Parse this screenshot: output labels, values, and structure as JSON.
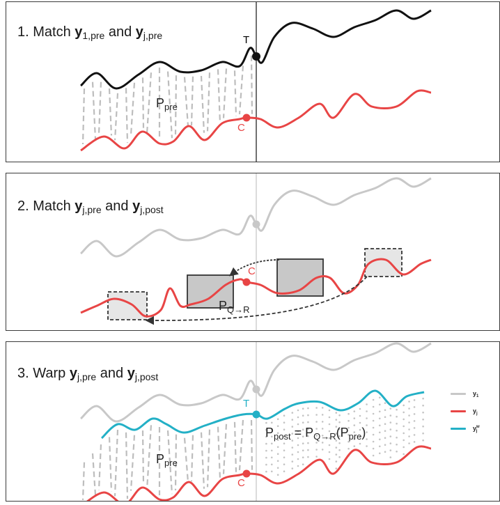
{
  "panels": [
    {
      "title_prefix": "1. Match ",
      "title_b1": "y",
      "title_b1_sub": "1,pre",
      "title_mid": "  and ",
      "title_b2": "y",
      "title_b2_sub": "j,pre",
      "label_T": "T",
      "label_C": "C",
      "label_P": "P",
      "label_P_sub": "pre"
    },
    {
      "title_prefix": "2. Match ",
      "title_b1": "y",
      "title_b1_sub": "j,pre",
      "title_mid": "  and ",
      "title_b2": "y",
      "title_b2_sub": "j,post",
      "label_C": "C",
      "label_P": "P",
      "label_P_sub": "Q→R"
    },
    {
      "title_prefix": "3. Warp ",
      "title_b1": "y",
      "title_b1_sub": "j,pre",
      "title_mid": "  and ",
      "title_b2": "y",
      "title_b2_sub": "j,post",
      "label_T": "T",
      "label_C": "C",
      "label_P": "P",
      "label_P_sub": "pre",
      "formula_P": "P",
      "formula_P_sub": "post",
      "formula_eq": " = P",
      "formula_sub2": "Q→R",
      "formula_open": "(P",
      "formula_sub3": "pre",
      "formula_close": ")"
    }
  ],
  "legend": [
    {
      "label": "y",
      "sub": "1",
      "sup": "",
      "color": "#c8c8c8"
    },
    {
      "label": "y",
      "sub": "j",
      "sup": "",
      "color": "#e84545"
    },
    {
      "label": "y",
      "sub": "j",
      "sup": "w",
      "color": "#23b0c6"
    }
  ],
  "colors": {
    "black": "#111111",
    "red": "#e84545",
    "grey": "#c8c8c8",
    "teal": "#23b0c6",
    "box": "#c8c8c8"
  }
}
